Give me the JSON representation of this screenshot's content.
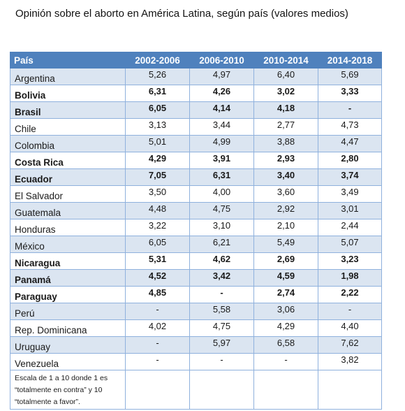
{
  "title": "Opinión sobre el aborto en América Latina, según país (valores medios)",
  "table": {
    "headers": [
      "País",
      "2002-2006",
      "2006-2010",
      "2010-2014",
      "2014-2018"
    ],
    "rows": [
      {
        "country": "Argentina",
        "bold": false,
        "values": [
          "5,26",
          "4,97",
          "6,40",
          "5,69"
        ]
      },
      {
        "country": "Bolivia",
        "bold": true,
        "values": [
          "6,31",
          "4,26",
          "3,02",
          "3,33"
        ]
      },
      {
        "country": "Brasil",
        "bold": true,
        "values": [
          "6,05",
          "4,14",
          "4,18",
          "-"
        ]
      },
      {
        "country": "Chile",
        "bold": false,
        "values": [
          "3,13",
          "3,44",
          "2,77",
          "4,73"
        ]
      },
      {
        "country": "Colombia",
        "bold": false,
        "values": [
          "5,01",
          "4,99",
          "3,88",
          "4,47"
        ]
      },
      {
        "country": "Costa Rica",
        "bold": true,
        "values": [
          "4,29",
          "3,91",
          "2,93",
          "2,80"
        ]
      },
      {
        "country": "Ecuador",
        "bold": true,
        "values": [
          "7,05",
          "6,31",
          "3,40",
          "3,74"
        ]
      },
      {
        "country": "El Salvador",
        "bold": false,
        "values": [
          "3,50",
          "4,00",
          "3,60",
          "3,49"
        ]
      },
      {
        "country": "Guatemala",
        "bold": false,
        "values": [
          "4,48",
          "4,75",
          "2,92",
          "3,01"
        ]
      },
      {
        "country": "Honduras",
        "bold": false,
        "values": [
          "3,22",
          "3,10",
          "2,10",
          "2,44"
        ]
      },
      {
        "country": "México",
        "bold": false,
        "values": [
          "6,05",
          "6,21",
          "5,49",
          "5,07"
        ]
      },
      {
        "country": "Nicaragua",
        "bold": true,
        "values": [
          "5,31",
          "4,62",
          "2,69",
          "3,23"
        ]
      },
      {
        "country": "Panamá",
        "bold": true,
        "values": [
          "4,52",
          "3,42",
          "4,59",
          "1,98"
        ]
      },
      {
        "country": "Paraguay",
        "bold": true,
        "values": [
          "4,85",
          "-",
          "2,74",
          "2,22"
        ]
      },
      {
        "country": "Perú",
        "bold": false,
        "values": [
          "-",
          "5,58",
          "3,06",
          "-"
        ]
      },
      {
        "country": "Rep. Dominicana",
        "bold": false,
        "values": [
          "4,02",
          "4,75",
          "4,29",
          "4,40"
        ]
      },
      {
        "country": "Uruguay",
        "bold": false,
        "values": [
          "-",
          "5,97",
          "6,58",
          "7,62"
        ]
      },
      {
        "country": "Venezuela",
        "bold": false,
        "values": [
          "-",
          "-",
          "-",
          "3,82"
        ]
      }
    ],
    "note": "Escala de 1 a 10 donde 1 es “totalmente en contra” y 10 “totalmente a favor”."
  }
}
